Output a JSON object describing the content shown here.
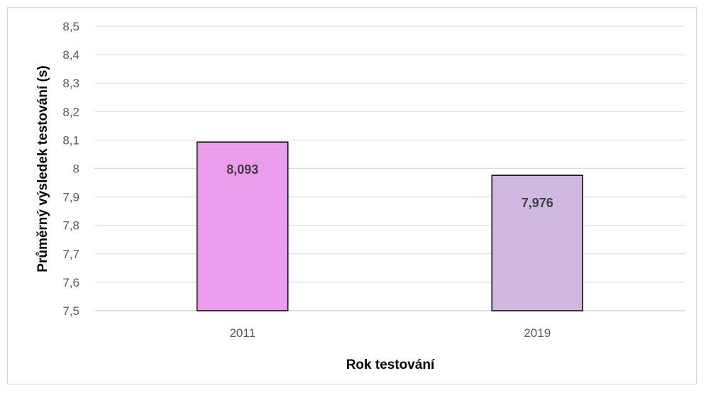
{
  "chart_data": {
    "type": "bar",
    "categories": [
      "2011",
      "2019"
    ],
    "values": [
      8.093,
      7.976
    ],
    "value_labels": [
      "8,093",
      "7,976"
    ],
    "colors": [
      "#ea9ded",
      "#d0b8e0"
    ],
    "xlabel": "Rok testování",
    "ylabel": "Průměrný výsledek testování (s)",
    "ylim": [
      7.5,
      8.5
    ],
    "yticks": [
      7.5,
      7.6,
      7.7,
      7.8,
      7.9,
      8,
      8.1,
      8.2,
      8.3,
      8.4,
      8.5
    ],
    "ytick_labels": [
      "7,5",
      "7,6",
      "7,7",
      "7,8",
      "7,9",
      "8",
      "8,1",
      "8,2",
      "8,3",
      "8,4",
      "8,5"
    ],
    "grid": true,
    "legend": "none"
  }
}
